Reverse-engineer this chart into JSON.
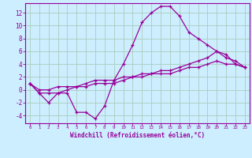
{
  "xlabel": "Windchill (Refroidissement éolien,°C)",
  "background_color": "#cceeff",
  "grid_color": "#aaccbb",
  "line_color": "#990099",
  "xlim": [
    -0.5,
    23.5
  ],
  "ylim": [
    -5.2,
    13.5
  ],
  "xticks": [
    0,
    1,
    2,
    3,
    4,
    5,
    6,
    7,
    8,
    9,
    10,
    11,
    12,
    13,
    14,
    15,
    16,
    17,
    18,
    19,
    20,
    21,
    22,
    23
  ],
  "yticks": [
    -4,
    -2,
    0,
    2,
    4,
    6,
    8,
    10,
    12
  ],
  "line1_x": [
    0,
    1,
    2,
    3,
    4,
    5,
    6,
    7,
    8,
    9,
    10,
    11,
    12,
    13,
    14,
    15,
    16,
    17,
    18,
    19,
    20,
    21,
    22,
    23
  ],
  "line1_y": [
    1,
    -0.5,
    -2,
    -0.5,
    -0.5,
    -3.5,
    -3.5,
    -4.5,
    -2.5,
    1.5,
    4,
    7,
    10.5,
    12,
    13,
    13,
    11.5,
    9,
    8,
    7,
    6,
    5.5,
    4,
    3.5
  ],
  "line2_x": [
    0,
    1,
    2,
    3,
    4,
    5,
    6,
    7,
    8,
    9,
    10,
    11,
    12,
    13,
    14,
    15,
    16,
    17,
    18,
    19,
    20,
    21,
    22,
    23
  ],
  "line2_y": [
    1,
    0,
    0,
    0.5,
    0.5,
    0.5,
    1,
    1.5,
    1.5,
    1.5,
    2,
    2,
    2.5,
    2.5,
    3,
    3,
    3.5,
    4,
    4.5,
    5,
    6,
    5,
    4.5,
    3.5
  ],
  "line3_x": [
    0,
    1,
    2,
    3,
    4,
    5,
    6,
    7,
    8,
    9,
    10,
    11,
    12,
    13,
    14,
    15,
    16,
    17,
    18,
    19,
    20,
    21,
    22,
    23
  ],
  "line3_y": [
    1,
    -0.5,
    -0.5,
    -0.5,
    0,
    0.5,
    0.5,
    1,
    1,
    1,
    1.5,
    2,
    2,
    2.5,
    2.5,
    2.5,
    3,
    3.5,
    3.5,
    4,
    4.5,
    4,
    4,
    3.5
  ]
}
